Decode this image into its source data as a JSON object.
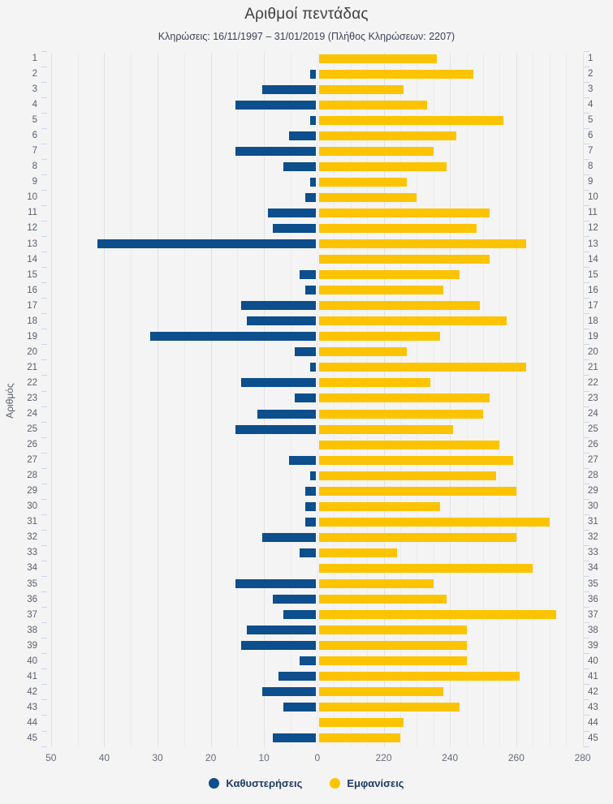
{
  "header": {
    "title": "Αριθμοί πεντάδας",
    "subtitle": "Κληρώσεις: 16/11/1997 – 31/01/2019 (Πλήθος Κληρώσεων: 2207)"
  },
  "y_axis_title": "Αριθμός",
  "legend": [
    {
      "label": "Καθυστερήσεις",
      "color": "#0d4e8c"
    },
    {
      "label": "Εμφανίσεις",
      "color": "#fcc400"
    }
  ],
  "colors": {
    "background": "#f4f4f5",
    "delay_bar": "#0d4e8c",
    "appearance_bar": "#fcc400",
    "grid_minor": "#ececee",
    "grid_major": "#e2e2e5",
    "axis_text": "#676d78",
    "legend_text": "#1f3a63"
  },
  "chart_data": {
    "type": "bar",
    "layout": "horizontal-diverging",
    "title": "Αριθμοί πεντάδας",
    "subtitle": "Κληρώσεις: 16/11/1997 – 31/01/2019 (Πλήθος Κληρώσεων: 2207)",
    "ylabel": "Αριθμός",
    "grid": "vertical minor lines every 5 units, majors at labeled ticks",
    "legend_position": "bottom-center",
    "categories": [
      1,
      2,
      3,
      4,
      5,
      6,
      7,
      8,
      9,
      10,
      11,
      12,
      13,
      14,
      15,
      16,
      17,
      18,
      19,
      20,
      21,
      22,
      23,
      24,
      25,
      26,
      27,
      28,
      29,
      30,
      31,
      32,
      33,
      34,
      35,
      36,
      37,
      38,
      39,
      40,
      41,
      42,
      43,
      44,
      45
    ],
    "series": [
      {
        "name": "Καθυστερήσεις",
        "side": "left",
        "color": "#0d4e8c",
        "axis_range": [
          0,
          50
        ],
        "axis_ticks": [
          50,
          40,
          30,
          20,
          10,
          0
        ],
        "values": [
          0,
          1,
          10,
          15,
          1,
          5,
          15,
          6,
          1,
          2,
          9,
          8,
          41,
          0,
          3,
          2,
          14,
          13,
          31,
          4,
          1,
          14,
          4,
          11,
          15,
          0,
          5,
          1,
          2,
          2,
          2,
          10,
          3,
          0,
          15,
          8,
          6,
          13,
          14,
          3,
          7,
          10,
          6,
          0,
          8
        ]
      },
      {
        "name": "Εμφανίσεις",
        "side": "right",
        "color": "#fcc400",
        "axis_range": [
          200,
          280
        ],
        "axis_ticks": [
          220,
          240,
          260,
          280
        ],
        "values": [
          236,
          247,
          226,
          233,
          256,
          242,
          235,
          239,
          227,
          230,
          252,
          248,
          263,
          252,
          243,
          238,
          249,
          257,
          237,
          227,
          263,
          234,
          252,
          250,
          241,
          255,
          259,
          254,
          260,
          237,
          270,
          260,
          224,
          265,
          235,
          239,
          272,
          245,
          245,
          245,
          261,
          238,
          243,
          226,
          225
        ]
      }
    ]
  }
}
